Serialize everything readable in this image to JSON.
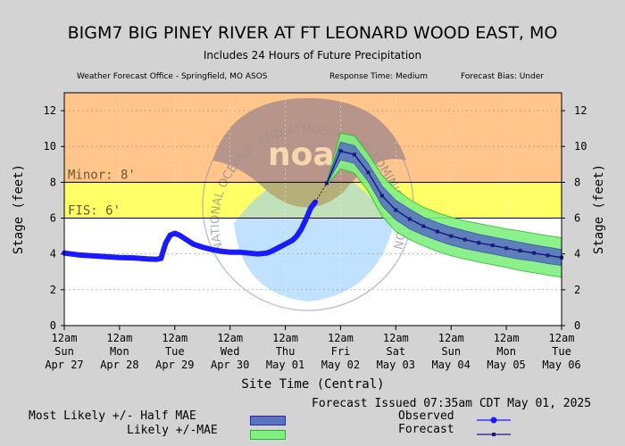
{
  "header": {
    "title": "BIGM7 BIG PINEY RIVER AT FT LEONARD WOOD EAST, MO",
    "subtitle": "Includes  24 Hours of Future Precipitation",
    "office": "Weather Forecast Office - Springfield, MO ASOS",
    "response_time": "Response Time: Medium",
    "forecast_bias": "Forecast Bias:  Under"
  },
  "chart_data": {
    "type": "line",
    "xlabel": "Site Time (Central)",
    "ylabel": "Stage (feet)",
    "ylim": [
      0,
      13
    ],
    "y_ticks": [
      0,
      2,
      4,
      6,
      8,
      10,
      12
    ],
    "x_unit": "hours since Apr 27 12am (Central)",
    "xlim": [
      0,
      216
    ],
    "x_ticks": [
      {
        "day": "12am",
        "weekday": "Sun",
        "date": "Apr 27"
      },
      {
        "day": "12am",
        "weekday": "Mon",
        "date": "Apr 28"
      },
      {
        "day": "12am",
        "weekday": "Tue",
        "date": "Apr 29"
      },
      {
        "day": "12am",
        "weekday": "Wed",
        "date": "Apr 30"
      },
      {
        "day": "12am",
        "weekday": "Thu",
        "date": "May 01"
      },
      {
        "day": "12am",
        "weekday": "Fri",
        "date": "May 02"
      },
      {
        "day": "12am",
        "weekday": "Sat",
        "date": "May 03"
      },
      {
        "day": "12am",
        "weekday": "Sun",
        "date": "May 04"
      },
      {
        "day": "12am",
        "weekday": "Mon",
        "date": "May 05"
      },
      {
        "day": "12am",
        "weekday": "Tue",
        "date": "May 06"
      }
    ],
    "thresholds": [
      {
        "name": "Minor",
        "label": "Minor: 8'",
        "value": 8,
        "color": "#ffd08c"
      },
      {
        "name": "FIS",
        "label": "FIS: 6'",
        "value": 6,
        "color": "#ffff66"
      }
    ],
    "band_colors": {
      "above_minor": "#ffc58a",
      "minor": "#ffff66",
      "below": "#ffffff"
    },
    "series": [
      {
        "name": "Observed",
        "color": "#1a1aff",
        "points": [
          [
            0,
            4.05
          ],
          [
            6,
            3.95
          ],
          [
            12,
            3.9
          ],
          [
            18,
            3.85
          ],
          [
            24,
            3.8
          ],
          [
            30,
            3.78
          ],
          [
            36,
            3.72
          ],
          [
            40,
            3.7
          ],
          [
            42,
            3.75
          ],
          [
            44,
            4.6
          ],
          [
            46,
            5.05
          ],
          [
            48,
            5.15
          ],
          [
            50,
            5.05
          ],
          [
            53,
            4.8
          ],
          [
            56,
            4.55
          ],
          [
            60,
            4.38
          ],
          [
            64,
            4.25
          ],
          [
            68,
            4.15
          ],
          [
            72,
            4.1
          ],
          [
            76,
            4.1
          ],
          [
            80,
            4.05
          ],
          [
            84,
            4.0
          ],
          [
            88,
            4.05
          ],
          [
            90,
            4.15
          ],
          [
            93,
            4.35
          ],
          [
            96,
            4.55
          ],
          [
            99,
            4.75
          ],
          [
            101,
            5.0
          ],
          [
            103,
            5.4
          ],
          [
            105,
            5.95
          ],
          [
            107,
            6.55
          ],
          [
            109,
            6.9
          ]
        ]
      },
      {
        "name": "Forecast",
        "color": "#1a1a80",
        "points": [
          [
            114,
            7.95
          ],
          [
            120,
            9.75
          ],
          [
            126,
            9.55
          ],
          [
            132,
            8.55
          ],
          [
            138,
            7.25
          ],
          [
            144,
            6.45
          ],
          [
            150,
            5.95
          ],
          [
            156,
            5.55
          ],
          [
            162,
            5.25
          ],
          [
            168,
            5.0
          ],
          [
            174,
            4.8
          ],
          [
            180,
            4.62
          ],
          [
            186,
            4.48
          ],
          [
            192,
            4.32
          ],
          [
            198,
            4.18
          ],
          [
            204,
            4.05
          ],
          [
            210,
            3.92
          ],
          [
            216,
            3.8
          ]
        ]
      }
    ],
    "uncertainty": {
      "likely_half_mae": {
        "color": "#5a74c0",
        "upper": [
          8.0,
          10.25,
          10.05,
          9.05,
          7.8,
          7.0,
          6.5,
          6.05,
          5.75,
          5.5,
          5.3,
          5.1,
          4.95,
          4.8,
          4.65,
          4.5,
          4.38,
          4.25
        ],
        "lower": [
          7.9,
          9.25,
          9.05,
          8.05,
          6.7,
          5.9,
          5.4,
          5.05,
          4.75,
          4.5,
          4.3,
          4.14,
          4.0,
          3.84,
          3.7,
          3.6,
          3.46,
          3.35
        ]
      },
      "likely_mae": {
        "color": "#80f080",
        "upper": [
          8.05,
          10.75,
          10.6,
          9.6,
          8.4,
          7.6,
          7.05,
          6.6,
          6.3,
          6.05,
          5.85,
          5.7,
          5.55,
          5.4,
          5.28,
          5.15,
          5.02,
          4.9
        ],
        "lower": [
          7.85,
          8.75,
          8.5,
          7.5,
          6.1,
          5.25,
          4.8,
          4.45,
          4.15,
          3.9,
          3.72,
          3.55,
          3.4,
          3.25,
          3.08,
          2.95,
          2.82,
          2.7
        ]
      }
    },
    "watermark": "NATIONAL OCEANIC AND ATMOSPHERIC ADMINISTRATION — U.S. DEPARTMENT OF COMMERCE",
    "watermark_logo": "noaa"
  },
  "legend": {
    "most_likely": "Most Likely +/- Half MAE",
    "likely": "Likely +/-MAE",
    "issued": "Forecast Issued 07:35am CDT May 01, 2025",
    "observed": "Observed",
    "forecast": "Forecast"
  }
}
